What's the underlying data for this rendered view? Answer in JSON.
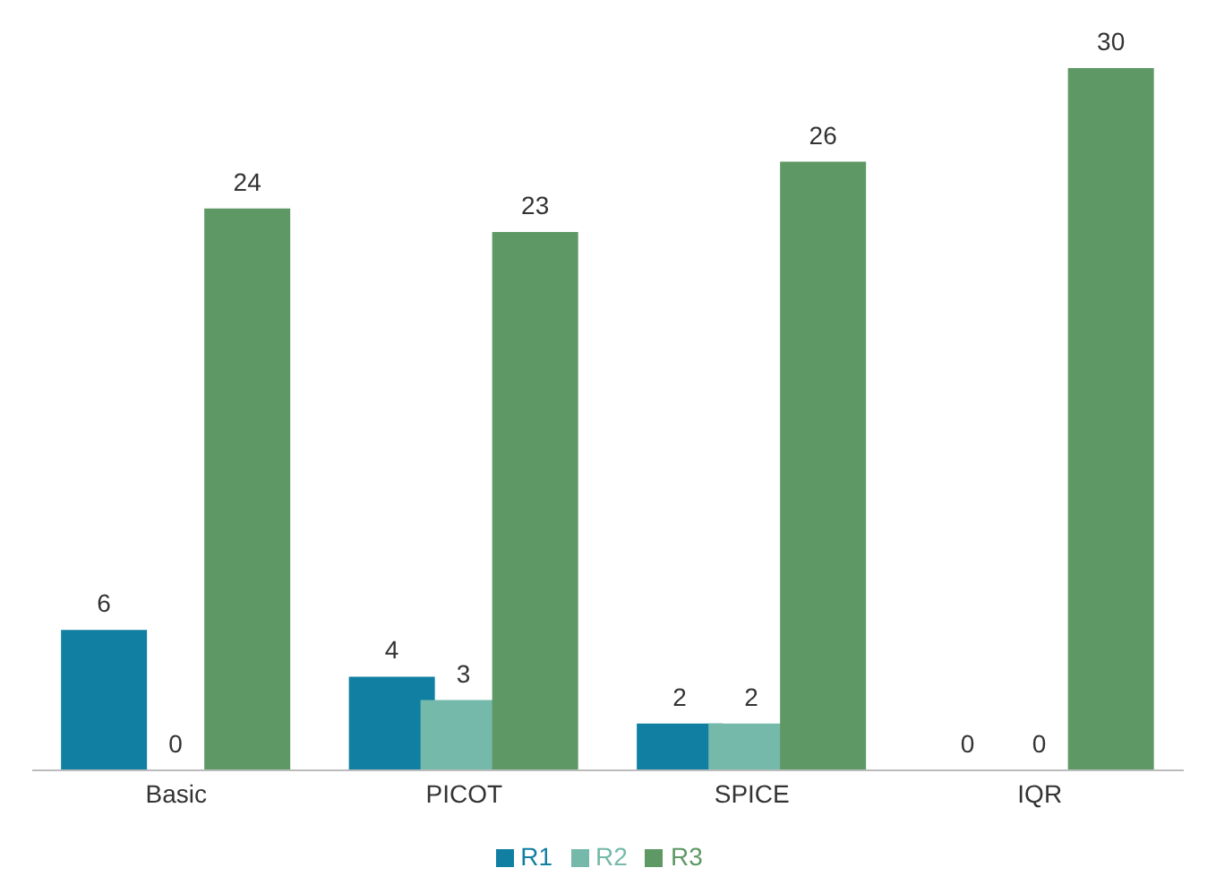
{
  "chart_data": {
    "type": "bar",
    "categories": [
      "Basic",
      "PICOT",
      "SPICE",
      "IQR"
    ],
    "series": [
      {
        "name": "R1",
        "color": "#107fa1",
        "values": [
          6,
          4,
          2,
          0
        ]
      },
      {
        "name": "R2",
        "color": "#74b9a9",
        "values": [
          0,
          3,
          2,
          0
        ]
      },
      {
        "name": "R3",
        "color": "#5e9865",
        "values": [
          24,
          23,
          26,
          30
        ]
      }
    ],
    "data_labels": true,
    "legend": "bottom",
    "grid": false
  }
}
